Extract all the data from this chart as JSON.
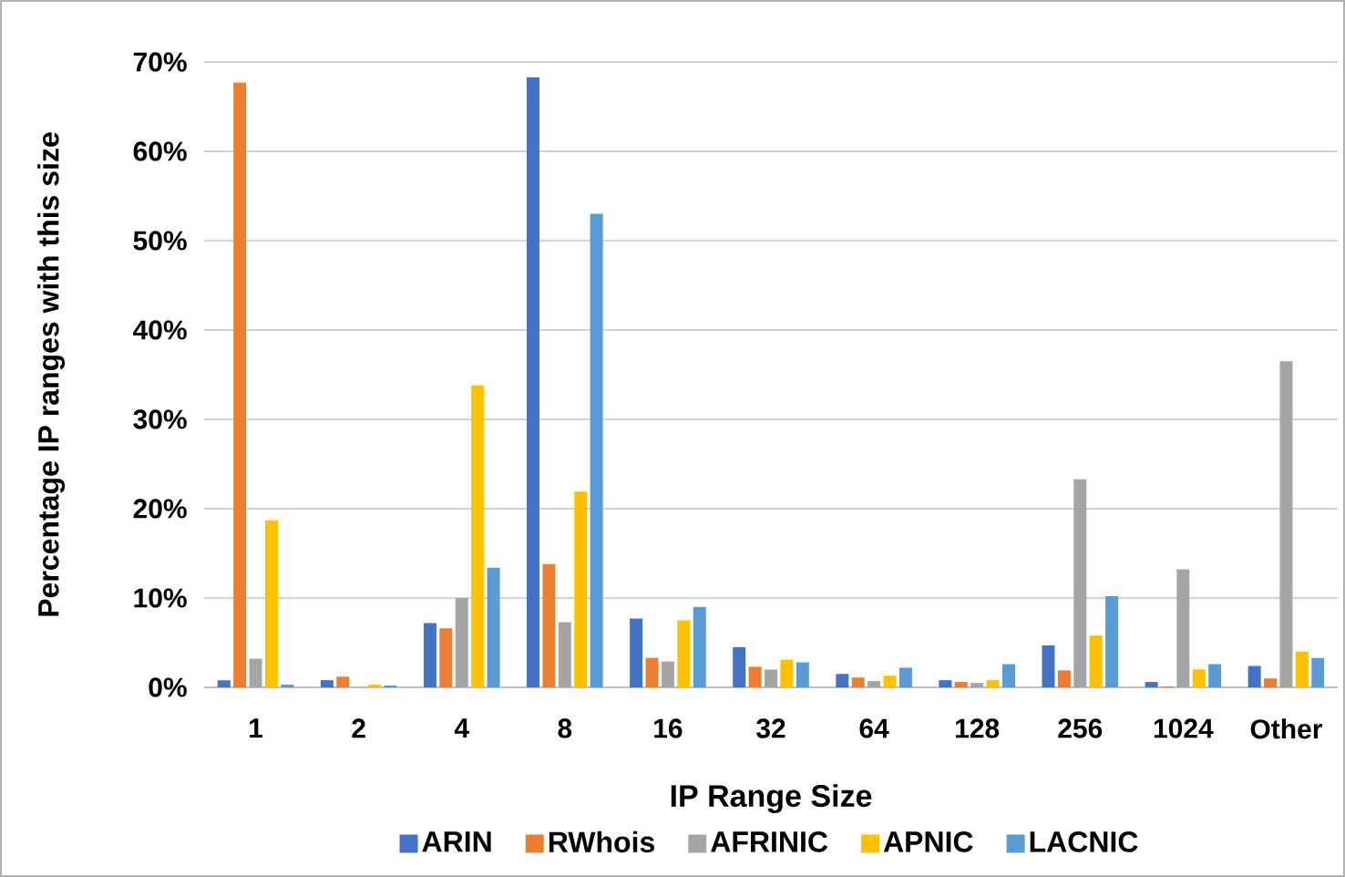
{
  "chart_data": {
    "type": "bar",
    "xlabel": "IP Range Size",
    "ylabel": "Percentage IP ranges with this size",
    "categories": [
      "1",
      "2",
      "4",
      "8",
      "16",
      "32",
      "64",
      "128",
      "256",
      "1024",
      "Other"
    ],
    "series": [
      {
        "name": "ARIN",
        "color": "#4472c4",
        "values": [
          0.8,
          0.8,
          7.2,
          68.3,
          7.7,
          4.5,
          1.5,
          0.8,
          4.7,
          0.6,
          2.4
        ]
      },
      {
        "name": "RWhois",
        "color": "#ed7d31",
        "values": [
          67.7,
          1.2,
          6.6,
          13.8,
          3.3,
          2.3,
          1.1,
          0.6,
          1.9,
          0.1,
          1.0
        ]
      },
      {
        "name": "AFRINIC",
        "color": "#a5a5a5",
        "values": [
          3.2,
          null,
          10.0,
          7.3,
          2.9,
          2.0,
          0.7,
          0.5,
          23.3,
          13.2,
          36.5
        ]
      },
      {
        "name": "APNIC",
        "color": "#ffc000",
        "values": [
          18.7,
          0.3,
          33.8,
          21.9,
          7.5,
          3.1,
          1.3,
          0.8,
          5.8,
          2.0,
          4.0
        ]
      },
      {
        "name": "LACNIC",
        "color": "#5b9bd5",
        "values": [
          0.3,
          0.2,
          13.4,
          53.0,
          9.0,
          2.8,
          2.2,
          2.6,
          10.2,
          2.6,
          3.3
        ]
      }
    ],
    "ylim": [
      0,
      70
    ],
    "yticks": [
      {
        "value": 0,
        "label": "0%"
      },
      {
        "value": 10,
        "label": "10%"
      },
      {
        "value": 20,
        "label": "20%"
      },
      {
        "value": 30,
        "label": "30%"
      },
      {
        "value": 40,
        "label": "40%"
      },
      {
        "value": 50,
        "label": "50%"
      },
      {
        "value": 60,
        "label": "60%"
      },
      {
        "value": 70,
        "label": "70%"
      }
    ],
    "grid": "y",
    "legend": "bottom"
  }
}
